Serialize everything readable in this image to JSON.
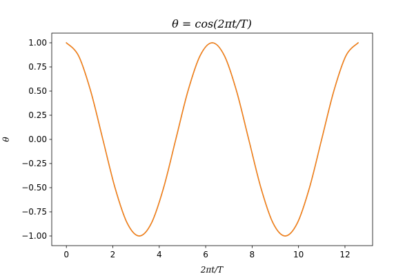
{
  "chart_data": {
    "type": "line",
    "title": "θ = cos(2πt/T)",
    "xlabel": "2πt/T",
    "ylabel": "θ",
    "xlim": [
      -0.63,
      13.19
    ],
    "ylim": [
      -1.1,
      1.1
    ],
    "grid": false,
    "xticks": [
      0,
      2,
      4,
      6,
      8,
      10,
      12
    ],
    "xtick_labels": [
      "0",
      "2",
      "4",
      "6",
      "8",
      "10",
      "12"
    ],
    "yticks": [
      1.0,
      0.75,
      0.5,
      0.25,
      0.0,
      -0.25,
      -0.5,
      -0.75,
      -1.0
    ],
    "ytick_labels": [
      "1.00",
      "0.75",
      "0.50",
      "0.25",
      "0.00",
      "−0.25",
      "−0.50",
      "−0.75",
      "−1.00"
    ],
    "series": [
      {
        "color": "#1f77b4",
        "x": [
          0,
          0.5236,
          1.0472,
          1.5708,
          2.0944,
          2.618,
          3.1416,
          3.6652,
          4.1888,
          4.7124,
          5.236,
          5.7596,
          6.2832,
          6.8068,
          7.3304,
          7.854,
          8.3776,
          8.9012,
          9.4248,
          9.9484,
          10.472,
          10.9956,
          11.5192,
          12.0428,
          12.5664
        ],
        "y": [
          1.0,
          0.866,
          0.5,
          0.0,
          -0.5,
          -0.866,
          -1.0,
          -0.866,
          -0.5,
          0.0,
          0.5,
          0.866,
          1.0,
          0.866,
          0.5,
          0.0,
          -0.5,
          -0.866,
          -1.0,
          -0.866,
          -0.5,
          0.0,
          0.5,
          0.866,
          1.0
        ]
      },
      {
        "color": "#ff7f0e",
        "x": [
          0,
          0.5236,
          1.0472,
          1.5708,
          2.0944,
          2.618,
          3.1416,
          3.6652,
          4.1888,
          4.7124,
          5.236,
          5.7596,
          6.2832,
          6.8068,
          7.3304,
          7.854,
          8.3776,
          8.9012,
          9.4248,
          9.9484,
          10.472,
          10.9956,
          11.5192,
          12.0428,
          12.5664
        ],
        "y": [
          1.0,
          0.866,
          0.5,
          0.0,
          -0.5,
          -0.866,
          -1.0,
          -0.866,
          -0.5,
          0.0,
          0.5,
          0.866,
          1.0,
          0.866,
          0.5,
          0.0,
          -0.5,
          -0.866,
          -1.0,
          -0.866,
          -0.5,
          0.0,
          0.5,
          0.866,
          1.0
        ]
      }
    ]
  }
}
